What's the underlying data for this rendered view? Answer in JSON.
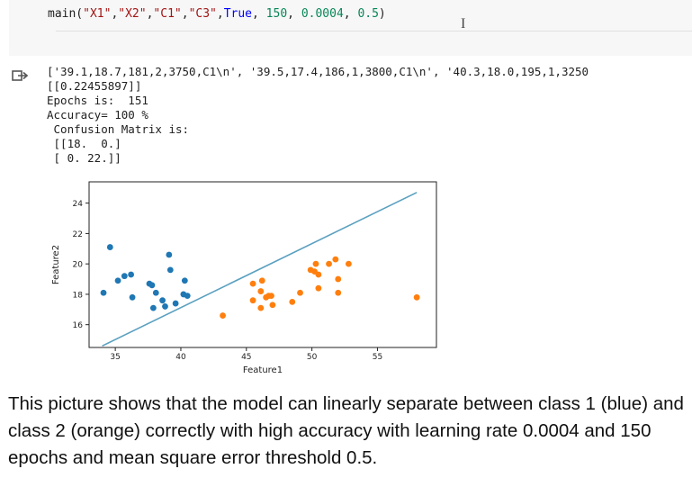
{
  "code": {
    "call_prefix": "main(",
    "arg_x1": "\"X1\"",
    "arg_x2": "\"X2\"",
    "arg_c1": "\"C1\"",
    "arg_c3": "\"C3\"",
    "arg_bool": "True",
    "arg_epochs": "150",
    "arg_lr": "0.0004",
    "arg_threshold": "0.5",
    "call_suffix": ")",
    "comma": ", "
  },
  "output": {
    "lines": [
      "['39.1,18.7,181,2,3750,C1\\n', '39.5,17.4,186,1,3800,C1\\n', '40.3,18.0,195,1,3250",
      "[[0.22455897]]",
      "Epochs is:  151",
      "Accuracy= 100 %",
      " Confusion Matrix is:",
      " [[18.  0.]",
      " [ 0. 22.]]"
    ]
  },
  "chart_data": {
    "type": "scatter",
    "xlabel": "Feature1",
    "ylabel": "Feature2",
    "xlim": [
      33,
      59.5
    ],
    "ylim": [
      14.5,
      25.4
    ],
    "xticks": [
      35,
      40,
      45,
      50,
      55
    ],
    "yticks": [
      16,
      18,
      20,
      22,
      24
    ],
    "series": [
      {
        "color": "#1f77b4",
        "points": [
          [
            34.1,
            18.1
          ],
          [
            34.6,
            21.1
          ],
          [
            35.2,
            18.9
          ],
          [
            35.7,
            19.2
          ],
          [
            36.2,
            19.3
          ],
          [
            36.3,
            17.8
          ],
          [
            37.6,
            18.7
          ],
          [
            37.8,
            18.6
          ],
          [
            37.9,
            17.1
          ],
          [
            38.1,
            18.1
          ],
          [
            38.6,
            17.6
          ],
          [
            38.8,
            17.2
          ],
          [
            39.1,
            20.6
          ],
          [
            39.2,
            19.6
          ],
          [
            39.6,
            17.4
          ],
          [
            40.2,
            18.0
          ],
          [
            40.3,
            18.9
          ],
          [
            40.5,
            17.9
          ]
        ]
      },
      {
        "color": "#ff7f0e",
        "points": [
          [
            43.2,
            16.6
          ],
          [
            45.5,
            18.7
          ],
          [
            45.5,
            17.6
          ],
          [
            46.1,
            18.2
          ],
          [
            46.1,
            17.1
          ],
          [
            46.2,
            18.9
          ],
          [
            46.5,
            17.8
          ],
          [
            46.7,
            17.9
          ],
          [
            46.9,
            17.9
          ],
          [
            47.0,
            17.3
          ],
          [
            48.5,
            17.5
          ],
          [
            49.1,
            18.1
          ],
          [
            49.9,
            19.6
          ],
          [
            50.2,
            19.5
          ],
          [
            50.3,
            20.0
          ],
          [
            50.5,
            19.3
          ],
          [
            50.5,
            18.4
          ],
          [
            51.3,
            20.0
          ],
          [
            51.8,
            20.3
          ],
          [
            52.0,
            19.0
          ],
          [
            52.0,
            18.1
          ],
          [
            52.8,
            20.0
          ],
          [
            58.0,
            17.8
          ]
        ]
      }
    ],
    "line": {
      "color": "#5aa0c0",
      "points": [
        [
          34.0,
          14.6
        ],
        [
          58.0,
          24.7
        ]
      ]
    }
  },
  "caption": "This picture shows that the model can linearly separate between class 1 (blue) and class 2 (orange) correctly with high accuracy with learning rate 0.0004 and 150 epochs and mean square error threshold 0.5."
}
